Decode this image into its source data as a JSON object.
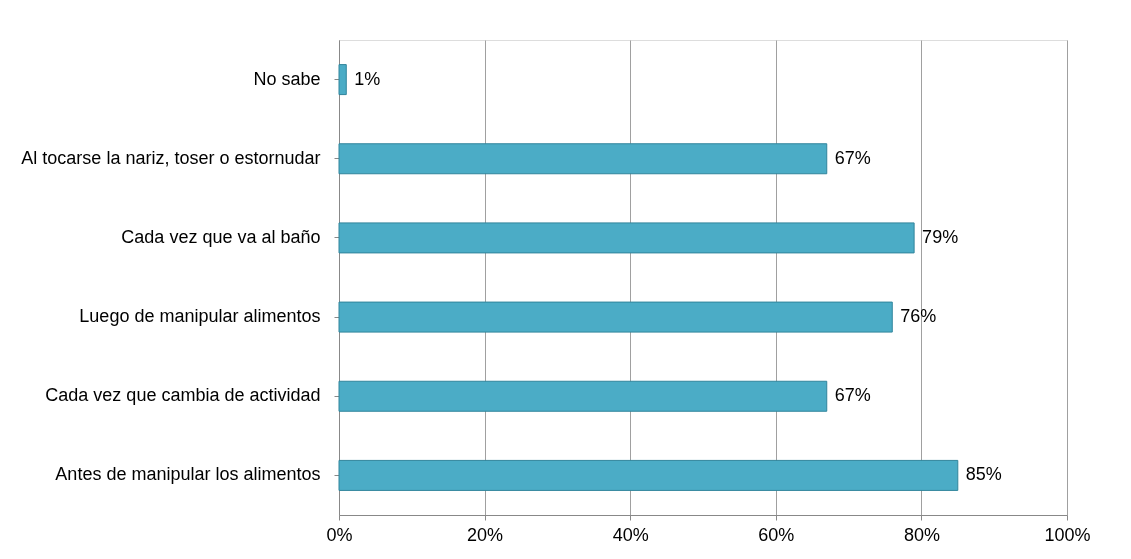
{
  "chart_data": {
    "type": "bar",
    "orientation": "horizontal",
    "categories": [
      "No sabe",
      "Al tocarse la nariz, toser o estornudar",
      "Cada vez que va al baño",
      "Luego de manipular alimentos",
      "Cada vez que cambia de actividad",
      "Antes de manipular los alimentos"
    ],
    "values": [
      1,
      67,
      79,
      76,
      67,
      85
    ],
    "value_labels": [
      "1%",
      "67%",
      "79%",
      "76%",
      "67%",
      "85%"
    ],
    "color": "#4bacc6",
    "xlim": [
      0,
      100
    ],
    "xticks": [
      {
        "value": 0,
        "label": "0%"
      },
      {
        "value": 20,
        "label": "20%"
      },
      {
        "value": 40,
        "label": "40%"
      },
      {
        "value": 60,
        "label": "60%"
      },
      {
        "value": 80,
        "label": "80%"
      },
      {
        "value": 100,
        "label": "100%"
      }
    ],
    "grid": "x"
  }
}
